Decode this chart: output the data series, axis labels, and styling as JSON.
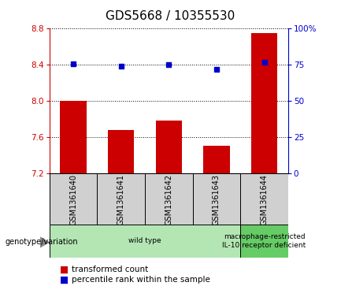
{
  "title": "GDS5668 / 10355530",
  "samples": [
    "GSM1361640",
    "GSM1361641",
    "GSM1361642",
    "GSM1361643",
    "GSM1361644"
  ],
  "bar_values": [
    8.0,
    7.68,
    7.78,
    7.5,
    8.75
  ],
  "bar_bottom": 7.2,
  "blue_values": [
    8.41,
    8.38,
    8.4,
    8.35,
    8.43
  ],
  "ylim_left": [
    7.2,
    8.8
  ],
  "ylim_right": [
    0,
    100
  ],
  "yticks_left": [
    7.2,
    7.6,
    8.0,
    8.4,
    8.8
  ],
  "yticks_right": [
    0,
    25,
    50,
    75,
    100
  ],
  "ytick_labels_right": [
    "0",
    "25",
    "50",
    "75",
    "100%"
  ],
  "bar_color": "#cc0000",
  "blue_color": "#0000cc",
  "grid_color": "#000000",
  "genotype_groups": [
    {
      "label": "wild type",
      "samples": [
        0,
        1,
        2,
        3
      ],
      "color": "#b3e6b3"
    },
    {
      "label": "macrophage-restricted\nIL-10 receptor deficient",
      "samples": [
        4
      ],
      "color": "#66cc66"
    }
  ],
  "legend_bar_label": "transformed count",
  "legend_dot_label": "percentile rank within the sample",
  "genotype_label": "genotype/variation",
  "left_axis_color": "#cc0000",
  "right_axis_color": "#0000cc",
  "background_color": "#ffffff",
  "plot_bg_color": "#ffffff",
  "label_box_color": "#d0d0d0",
  "title_fontsize": 11
}
